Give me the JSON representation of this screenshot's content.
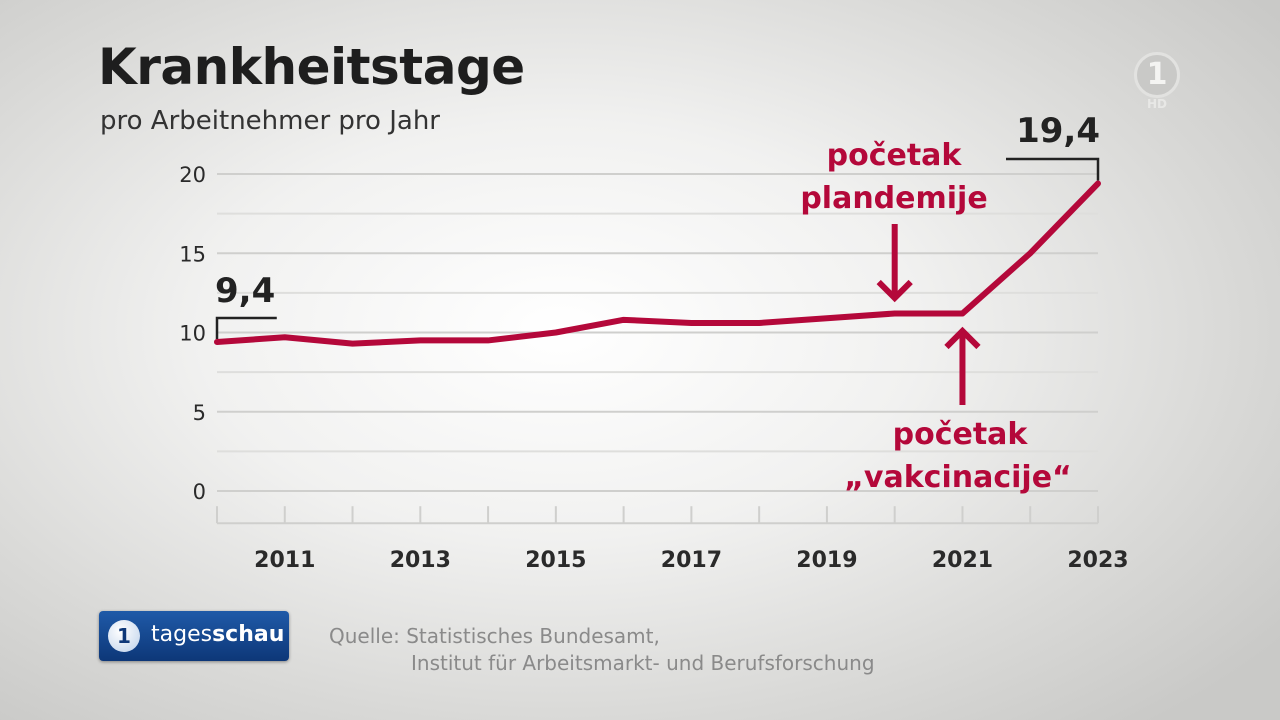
{
  "chart_data": {
    "type": "line",
    "title": "Krankheitstage",
    "subtitle": "pro Arbeitnehmer pro Jahr",
    "x": [
      2010,
      2011,
      2012,
      2013,
      2014,
      2015,
      2016,
      2017,
      2018,
      2019,
      2020,
      2021,
      2022,
      2023
    ],
    "values": [
      9.4,
      9.7,
      9.3,
      9.5,
      9.5,
      10.0,
      10.8,
      10.6,
      10.6,
      10.9,
      11.2,
      11.2,
      15.0,
      19.4
    ],
    "xticks": [
      "2011",
      "2013",
      "2015",
      "2017",
      "2019",
      "2021",
      "2023"
    ],
    "yticks": [
      "0",
      "5",
      "10",
      "15",
      "20"
    ],
    "ylim": [
      -2,
      21
    ],
    "xlim": [
      2010,
      2023
    ],
    "grid": true,
    "line_color": "#b4083a",
    "callouts": {
      "start_value": "9,4",
      "end_value": "19,4"
    },
    "annotations": {
      "pandemic": {
        "line1": "početak",
        "line2": "plandemije",
        "year": 2020
      },
      "vaccination": {
        "line1": "početak",
        "line2": "„vakcinacije“",
        "year": 2021
      }
    }
  },
  "logo": {
    "symbol": "1",
    "hd": "HD"
  },
  "brand": {
    "symbol": "1",
    "text_light": "tages",
    "text_bold": "schau"
  },
  "source": {
    "line1": "Quelle: Statistisches Bundesamt,",
    "line2": "Institut für Arbeitsmarkt- und Berufsforschung"
  }
}
